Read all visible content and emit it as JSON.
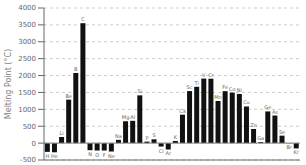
{
  "chart_data": {
    "type": "bar",
    "categories": [
      "H",
      "He",
      "Li",
      "Be",
      "B",
      "C",
      "N",
      "O",
      "F",
      "Ne",
      "Na",
      "Mg",
      "Al",
      "Si",
      "P",
      "S",
      "Cl",
      "Ar",
      "K",
      "Ca",
      "Sc",
      "Ti",
      "V",
      "Cr",
      "Mn",
      "Fe",
      "Co",
      "Ni",
      "Cu",
      "Zn",
      "Ga",
      "Ge",
      "As",
      "Se",
      "Br",
      "Kr"
    ],
    "values": [
      -259,
      -272,
      181,
      1287,
      2076,
      3550,
      -210,
      -219,
      -220,
      -249,
      98,
      650,
      660,
      1414,
      44,
      113,
      -101,
      -189,
      64,
      842,
      1541,
      1668,
      1910,
      1907,
      1246,
      1538,
      1495,
      1455,
      1085,
      420,
      30,
      938,
      817,
      221,
      -7,
      -157
    ],
    "color": "#111111",
    "ylabel": "Melting Point (°C)",
    "ylim": [
      -500,
      4000
    ],
    "yticks": [
      -500,
      0,
      500,
      1000,
      1500,
      2000,
      2500,
      3000,
      3500,
      4000
    ],
    "grid": true,
    "tick_labels": "y"
  }
}
